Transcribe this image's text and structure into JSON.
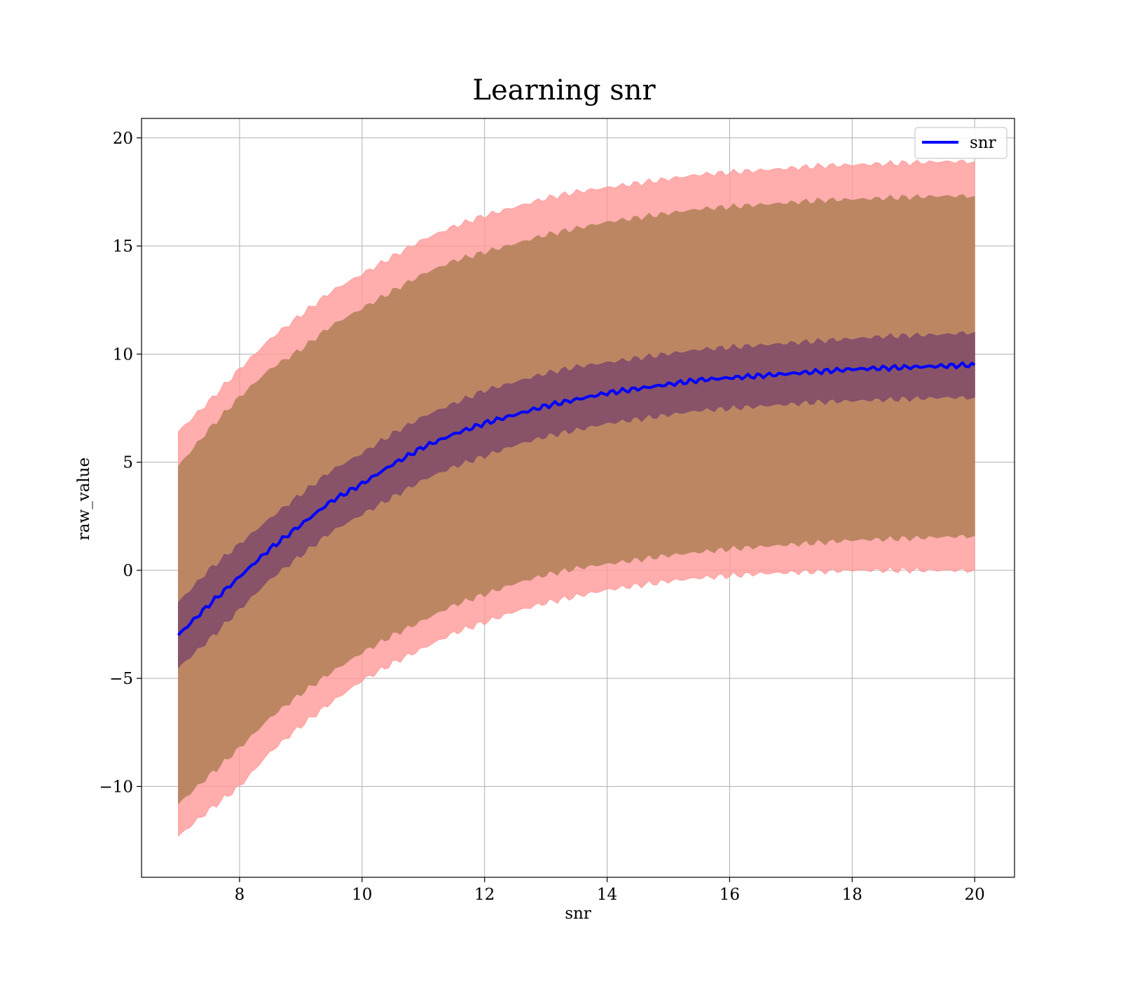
{
  "chart_data": {
    "type": "line",
    "title": "Learning snr",
    "xlabel": "snr",
    "ylabel": "raw_value",
    "xlim": [
      6.4,
      20.65
    ],
    "ylim": [
      -14.2,
      20.9
    ],
    "xticks": [
      8,
      10,
      12,
      14,
      16,
      18,
      20
    ],
    "yticks": [
      -10,
      -5,
      0,
      5,
      10,
      15,
      20
    ],
    "xtick_labels": [
      "8",
      "10",
      "12",
      "14",
      "16",
      "18",
      "20"
    ],
    "ytick_labels": [
      "−10",
      "−5",
      "0",
      "5",
      "10",
      "15",
      "20"
    ],
    "grid": true,
    "legend_position": "top-right",
    "series": [
      {
        "name": "snr",
        "color": "#0000ff",
        "x": [
          7.0,
          7.5,
          8.0,
          8.5,
          9.0,
          9.5,
          10.0,
          10.5,
          11.0,
          11.5,
          12.0,
          12.5,
          13.0,
          13.5,
          14.0,
          14.5,
          15.0,
          15.5,
          16.0,
          16.5,
          17.0,
          17.5,
          18.0,
          18.5,
          19.0,
          19.5,
          20.0
        ],
        "y": [
          -3.0,
          -1.6,
          -0.3,
          1.0,
          2.1,
          3.2,
          4.0,
          4.9,
          5.7,
          6.3,
          6.8,
          7.2,
          7.6,
          7.9,
          8.2,
          8.4,
          8.6,
          8.8,
          8.9,
          9.0,
          9.1,
          9.2,
          9.3,
          9.35,
          9.4,
          9.45,
          9.5
        ],
        "inner_lower": [
          -4.5,
          -3.2,
          -1.8,
          -0.4,
          0.7,
          1.8,
          2.6,
          3.4,
          4.2,
          4.8,
          5.3,
          5.8,
          6.2,
          6.5,
          6.8,
          7.0,
          7.2,
          7.4,
          7.5,
          7.6,
          7.7,
          7.8,
          7.85,
          7.9,
          7.95,
          8.0,
          8.0
        ],
        "inner_upper": [
          -1.5,
          0.0,
          1.2,
          2.4,
          3.5,
          4.6,
          5.4,
          6.3,
          7.1,
          7.7,
          8.3,
          8.7,
          9.1,
          9.4,
          9.6,
          9.8,
          10.0,
          10.2,
          10.3,
          10.4,
          10.5,
          10.6,
          10.7,
          10.8,
          10.85,
          10.9,
          11.0
        ],
        "middle_lower": [
          -10.8,
          -9.5,
          -8.2,
          -6.8,
          -5.7,
          -4.7,
          -3.8,
          -3.0,
          -2.3,
          -1.6,
          -1.1,
          -0.6,
          -0.2,
          0.1,
          0.3,
          0.5,
          0.7,
          0.85,
          1.0,
          1.1,
          1.2,
          1.3,
          1.4,
          1.45,
          1.5,
          1.55,
          1.6
        ],
        "middle_upper": [
          4.8,
          6.5,
          8.0,
          9.3,
          10.2,
          11.3,
          12.1,
          12.9,
          13.7,
          14.3,
          14.7,
          15.1,
          15.5,
          15.8,
          16.1,
          16.3,
          16.5,
          16.7,
          16.8,
          16.9,
          17.0,
          17.1,
          17.15,
          17.2,
          17.25,
          17.3,
          17.3
        ],
        "outer_lower": [
          -12.3,
          -11.1,
          -10.0,
          -8.4,
          -7.2,
          -6.1,
          -5.1,
          -4.3,
          -3.6,
          -2.9,
          -2.4,
          -1.9,
          -1.5,
          -1.2,
          -0.9,
          -0.7,
          -0.5,
          -0.35,
          -0.25,
          -0.15,
          -0.1,
          -0.05,
          0.0,
          0.0,
          0.0,
          0.0,
          0.0
        ],
        "outer_upper": [
          6.4,
          7.8,
          9.3,
          10.7,
          11.8,
          12.9,
          13.7,
          14.5,
          15.3,
          15.9,
          16.4,
          16.8,
          17.2,
          17.5,
          17.7,
          17.9,
          18.1,
          18.3,
          18.4,
          18.5,
          18.6,
          18.7,
          18.75,
          18.8,
          18.85,
          18.9,
          18.9
        ]
      }
    ],
    "band_colors": {
      "outer": "#ff9999",
      "middle": "#b9845f",
      "inner": "#7f4a6a"
    }
  }
}
